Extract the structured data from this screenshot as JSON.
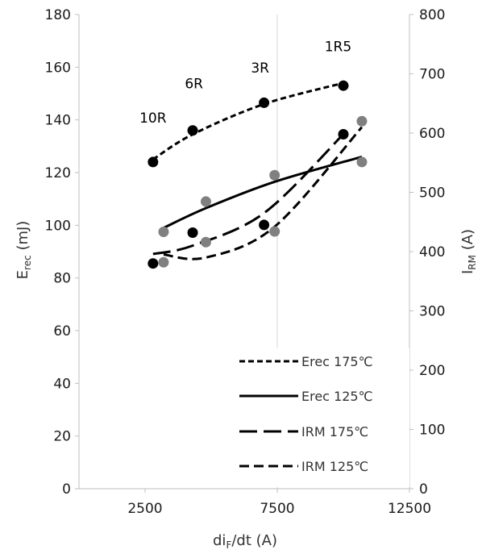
{
  "chart_data": {
    "type": "scatter",
    "x_axis": {
      "label_main": "di",
      "label_sub": "F",
      "label_rest": "/dt (A)",
      "range": [
        0,
        12500
      ],
      "ticks": [
        {
          "value": 2500,
          "label": "2500"
        },
        {
          "value": 7500,
          "label": "7500"
        },
        {
          "value": 12500,
          "label": "12500"
        }
      ],
      "gridlines": [
        7500
      ]
    },
    "y_axis_left": {
      "label_main": "E",
      "label_sub": "rec",
      "label_rest": " (mJ)",
      "range": [
        0,
        180
      ],
      "ticks": [
        0,
        20,
        40,
        60,
        80,
        100,
        120,
        140,
        160,
        180
      ]
    },
    "y_axis_right": {
      "label_main": "I",
      "label_sub": "RM",
      "label_rest": " (A)",
      "range": [
        0,
        800
      ],
      "ticks": [
        0,
        100,
        200,
        300,
        400,
        500,
        600,
        700,
        800
      ]
    },
    "series": [
      {
        "name": "Erec 175°C",
        "axis": "left",
        "color": "#000000",
        "dash": "short",
        "points": [
          [
            2800,
            124
          ],
          [
            4300,
            136
          ],
          [
            7000,
            146.5
          ],
          [
            10000,
            153
          ]
        ],
        "trend": [
          [
            2800,
            125
          ],
          [
            4300,
            134.5
          ],
          [
            7000,
            146
          ],
          [
            10000,
            154
          ]
        ]
      },
      {
        "name": "Erec 125°C",
        "axis": "left",
        "color": "#808080",
        "dash": "solid",
        "points": [
          [
            3200,
            97.5
          ],
          [
            4800,
            109
          ],
          [
            7400,
            119
          ],
          [
            10700,
            124
          ]
        ],
        "trend": [
          [
            3200,
            99
          ],
          [
            4800,
            106.5
          ],
          [
            7400,
            116.5
          ],
          [
            10700,
            126
          ]
        ]
      },
      {
        "name": "IRM 175°C",
        "axis": "right",
        "color": "#000000",
        "dash": "long",
        "points": [
          [
            2800,
            380
          ],
          [
            4300,
            432
          ],
          [
            7000,
            445
          ],
          [
            10000,
            598
          ]
        ],
        "trend": [
          [
            2800,
            396
          ],
          [
            4300,
            410
          ],
          [
            7000,
            465
          ],
          [
            10000,
            598
          ]
        ]
      },
      {
        "name": "IRM 125°C",
        "axis": "right",
        "color": "#808080",
        "dash": "medium",
        "points": [
          [
            3200,
            382
          ],
          [
            4800,
            416
          ],
          [
            7400,
            434
          ],
          [
            10700,
            620
          ]
        ],
        "trend": [
          [
            3200,
            395
          ],
          [
            4800,
            390
          ],
          [
            7400,
            442
          ],
          [
            10700,
            610
          ]
        ]
      }
    ],
    "annotations": [
      {
        "text": "10R",
        "x": 2800,
        "y": 139
      },
      {
        "text": "6R",
        "x": 4350,
        "y": 152
      },
      {
        "text": "3R",
        "x": 6850,
        "y": 158
      },
      {
        "text": "1R5",
        "x": 9800,
        "y": 166
      }
    ],
    "legend": {
      "placement": "bottom-right",
      "items": [
        {
          "label": "Erec 175℃",
          "dash": "short"
        },
        {
          "label": "Erec 125℃",
          "dash": "solid"
        },
        {
          "label": "IRM 175℃",
          "dash": "long"
        },
        {
          "label": "IRM 125℃",
          "dash": "medium"
        }
      ]
    },
    "grid": "vertical-major-only"
  }
}
